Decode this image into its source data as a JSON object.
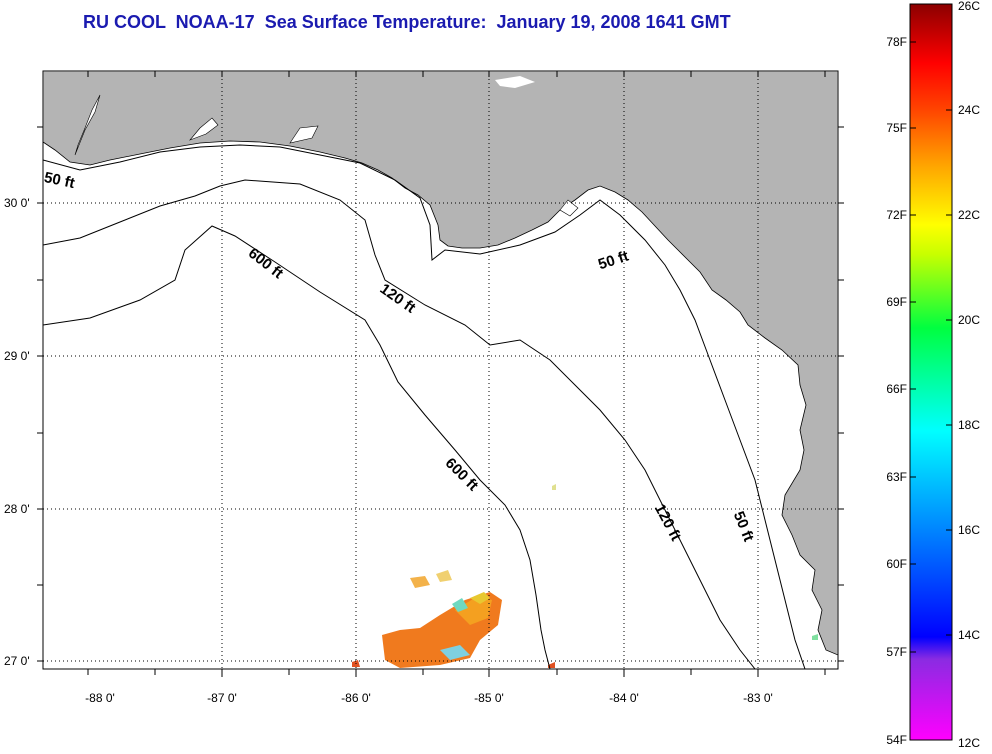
{
  "title": "RU COOL  NOAA-17  Sea Surface Temperature:  January 19, 2008 1641 GMT",
  "map": {
    "x_ticks": [
      "-88 0'",
      "-87 0'",
      "-86 0'",
      "-85 0'",
      "-84 0'",
      "-83 0'"
    ],
    "y_ticks": [
      "30 0'",
      "29 0'",
      "28 0'",
      "27 0'"
    ],
    "land_color": "#b4b4b4",
    "water_color": "#ffffff",
    "contour_labels": [
      "50 ft",
      "600 ft",
      "120 ft",
      "50 ft",
      "600 ft",
      "120 ft",
      "50 ft"
    ]
  },
  "colorbar": {
    "fahrenheit": [
      "78F",
      "75F",
      "72F",
      "69F",
      "66F",
      "63F",
      "60F",
      "57F",
      "54F"
    ],
    "celsius": [
      "26C",
      "24C",
      "22C",
      "20C",
      "18C",
      "16C",
      "14C",
      "12C"
    ],
    "min_c": 12,
    "max_c": 26
  }
}
